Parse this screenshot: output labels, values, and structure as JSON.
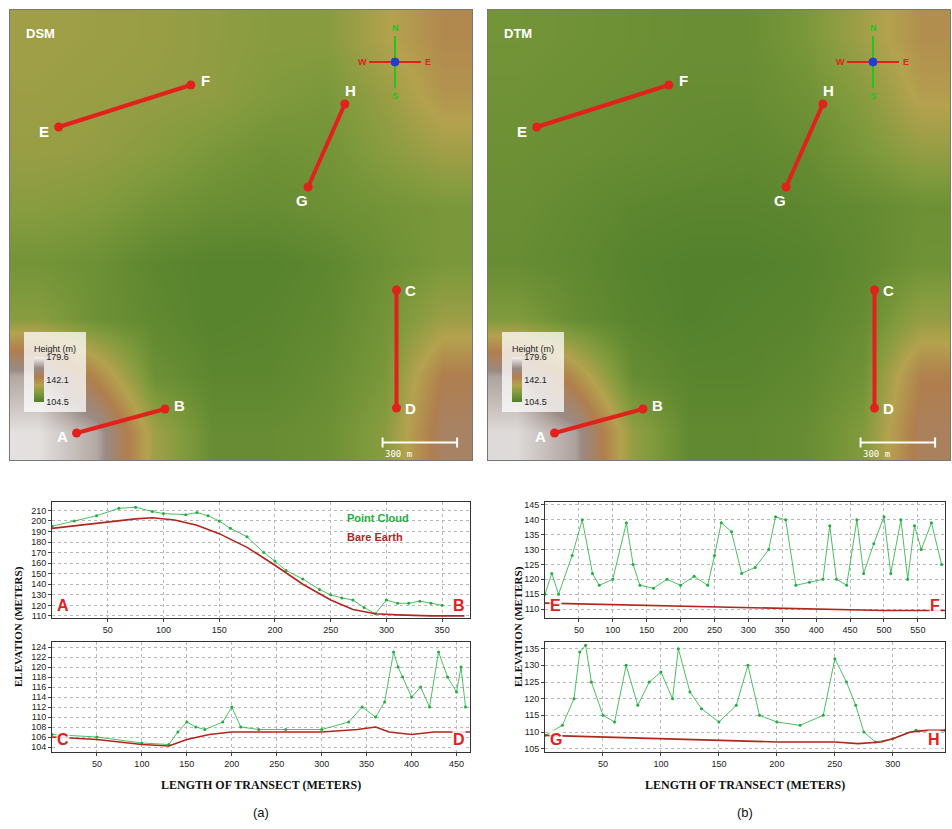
{
  "chart_data": [
    {
      "type": "heatmap",
      "title": "DSM",
      "x": [
        116.25,
        348.75,
        581.25,
        813.75,
        1046.25,
        1278.75,
        1511.25,
        1743.75
      ],
      "y": [
        112.5,
        337.5,
        562.5,
        787.5,
        1012.5,
        1237.5,
        1462.5,
        1687.5
      ],
      "cells": [
        [
          176,
          166,
          128,
          112,
          112,
          114,
          122,
          152
        ],
        [
          166,
          142,
          114,
          109,
          109,
          112,
          118,
          146
        ],
        [
          122,
          114,
          110,
          107,
          108,
          110,
          116,
          127
        ],
        [
          116,
          114,
          109,
          107,
          107,
          109,
          114,
          118
        ],
        [
          122,
          120,
          116,
          113,
          112,
          114,
          116,
          118
        ],
        [
          126,
          125,
          122,
          118,
          115,
          116,
          122,
          128
        ],
        [
          127,
          126,
          125,
          124,
          120,
          118,
          126,
          138
        ],
        [
          128,
          127,
          126,
          124,
          122,
          122,
          132,
          142
        ]
      ],
      "colorbar_title": "Height (m)",
      "colorbar_range": [
        104.5,
        179.6
      ],
      "colorbar_ticks": [
        104.5,
        142.1,
        179.6
      ],
      "xlim": [
        0,
        1860
      ],
      "ylim": [
        0,
        1800
      ],
      "tick_labels": false,
      "compass": [
        "N",
        "S",
        "W",
        "E"
      ],
      "scale_bar": {
        "length": 300,
        "label": "300 m"
      },
      "transects": [
        {
          "start_label": "A",
          "end_label": "B",
          "start": [
            268,
            108
          ],
          "end": [
            624,
            204
          ]
        },
        {
          "start_label": "C",
          "end_label": "D",
          "start": [
            1556,
            680
          ],
          "end": [
            1556,
            208
          ]
        },
        {
          "start_label": "E",
          "end_label": "F",
          "start": [
            196,
            1332
          ],
          "end": [
            728,
            1500
          ]
        },
        {
          "start_label": "G",
          "end_label": "H",
          "start": [
            1200,
            1092
          ],
          "end": [
            1348,
            1424
          ]
        }
      ]
    },
    {
      "type": "heatmap",
      "title": "DTM",
      "x": [
        116.25,
        348.75,
        581.25,
        813.75,
        1046.25,
        1278.75,
        1511.25,
        1743.75
      ],
      "y": [
        112.5,
        337.5,
        562.5,
        787.5,
        1012.5,
        1237.5,
        1462.5,
        1687.5
      ],
      "cells": [
        [
          175,
          165,
          125,
          110,
          110,
          112,
          120,
          150
        ],
        [
          165,
          140,
          112,
          108,
          108,
          110,
          115,
          145
        ],
        [
          120,
          112,
          108,
          106,
          107,
          108,
          112,
          125
        ],
        [
          112,
          110,
          107,
          106,
          106,
          107,
          110,
          115
        ],
        [
          113,
          111,
          109,
          108,
          108,
          109,
          111,
          114
        ],
        [
          114,
          113,
          112,
          111,
          110,
          112,
          118,
          125
        ],
        [
          115,
          114,
          113,
          112,
          112,
          115,
          122,
          135
        ],
        [
          116,
          115,
          114,
          113,
          113,
          118,
          128,
          140
        ]
      ],
      "colorbar_title": "Height (m)",
      "colorbar_range": [
        104.5,
        179.6
      ],
      "colorbar_ticks": [
        104.5,
        142.1,
        179.6
      ],
      "xlim": [
        0,
        1860
      ],
      "ylim": [
        0,
        1800
      ],
      "tick_labels": false,
      "compass": [
        "N",
        "S",
        "W",
        "E"
      ],
      "scale_bar": {
        "length": 300,
        "label": "300 m"
      },
      "transects": [
        {
          "start_label": "A",
          "end_label": "B",
          "start": [
            268,
            108
          ],
          "end": [
            624,
            204
          ]
        },
        {
          "start_label": "C",
          "end_label": "D",
          "start": [
            1556,
            680
          ],
          "end": [
            1556,
            208
          ]
        },
        {
          "start_label": "E",
          "end_label": "F",
          "start": [
            196,
            1332
          ],
          "end": [
            728,
            1500
          ]
        },
        {
          "start_label": "G",
          "end_label": "H",
          "start": [
            1200,
            1092
          ],
          "end": [
            1348,
            1424
          ]
        }
      ]
    },
    {
      "type": "line",
      "start_label": "A",
      "end_label": "B",
      "xlim": [
        0,
        375
      ],
      "ylim": [
        108,
        218
      ],
      "xticks": [
        50,
        100,
        150,
        200,
        250,
        300,
        350
      ],
      "yticks": [
        110,
        120,
        130,
        140,
        150,
        160,
        170,
        180,
        190,
        200,
        210
      ],
      "grid": true,
      "series": [
        {
          "name": "Point Cloud",
          "color": "#1fae3c",
          "marker": "circle",
          "line_style": "solid",
          "x": [
            0,
            20,
            40,
            60,
            75,
            90,
            100,
            120,
            130,
            140,
            150,
            160,
            175,
            190,
            200,
            210,
            225,
            240,
            250,
            260,
            270,
            280,
            290,
            300,
            310,
            320,
            330,
            340,
            350
          ],
          "values": [
            195,
            200,
            205,
            212,
            213,
            209,
            207,
            206,
            208,
            205,
            200,
            193,
            185,
            170,
            162,
            153,
            145,
            135,
            130,
            127,
            125,
            118,
            112,
            125,
            122,
            122,
            124,
            122,
            120
          ]
        },
        {
          "name": "Bare Earth",
          "color": "#b3261e",
          "line_style": "solid",
          "x": [
            0,
            25,
            50,
            75,
            90,
            110,
            130,
            150,
            175,
            200,
            225,
            250,
            270,
            290,
            310,
            340,
            370
          ],
          "values": [
            193,
            196,
            199,
            202,
            203,
            201,
            196,
            188,
            175,
            158,
            140,
            125,
            116,
            112,
            111,
            110,
            110
          ]
        }
      ]
    },
    {
      "type": "line",
      "start_label": "C",
      "end_label": "D",
      "xlim": [
        0,
        465
      ],
      "ylim": [
        103,
        125
      ],
      "xticks": [
        50,
        100,
        150,
        200,
        250,
        300,
        350,
        400,
        450
      ],
      "yticks": [
        104,
        106,
        108,
        110,
        112,
        114,
        116,
        118,
        120,
        122,
        124
      ],
      "grid": true,
      "series": [
        {
          "color": "#1fae3c",
          "marker": "circle",
          "line_style": "solid",
          "x": [
            0,
            50,
            100,
            130,
            140,
            150,
            160,
            170,
            190,
            200,
            210,
            230,
            260,
            300,
            330,
            345,
            360,
            370,
            380,
            385,
            390,
            400,
            410,
            420,
            430,
            440,
            450,
            455,
            460
          ],
          "values": [
            106.5,
            106,
            104.8,
            104.5,
            107,
            109,
            108,
            107.5,
            109,
            112,
            108,
            107.5,
            107.5,
            107.5,
            109,
            112,
            110,
            113,
            123,
            120,
            118,
            114,
            116,
            112,
            123,
            118,
            115,
            120,
            112
          ]
        },
        {
          "color": "#b3261e",
          "line_style": "solid",
          "x": [
            0,
            50,
            100,
            130,
            150,
            175,
            200,
            250,
            300,
            340,
            360,
            375,
            400,
            425,
            450,
            465
          ],
          "values": [
            106,
            105.5,
            104.5,
            104.2,
            105.5,
            106.5,
            107,
            107,
            107,
            107.5,
            108,
            107,
            106.5,
            107,
            107,
            107
          ]
        }
      ]
    },
    {
      "type": "line",
      "start_label": "E",
      "end_label": "F",
      "xlim": [
        0,
        590
      ],
      "ylim": [
        107,
        146
      ],
      "xticks": [
        50,
        100,
        150,
        200,
        250,
        300,
        350,
        400,
        450,
        500,
        550
      ],
      "yticks": [
        110,
        115,
        120,
        125,
        130,
        135,
        140,
        145
      ],
      "grid": true,
      "series": [
        {
          "color": "#1fae3c",
          "marker": "circle",
          "line_style": "solid",
          "x": [
            0,
            10,
            20,
            40,
            55,
            70,
            80,
            100,
            120,
            130,
            140,
            160,
            180,
            200,
            220,
            240,
            250,
            260,
            275,
            290,
            310,
            330,
            340,
            355,
            370,
            390,
            410,
            420,
            430,
            445,
            460,
            470,
            485,
            500,
            510,
            525,
            535,
            545,
            555,
            570,
            585
          ],
          "values": [
            115,
            122,
            115,
            128,
            140,
            122,
            118,
            120,
            139,
            125,
            118,
            117,
            120,
            118,
            121,
            118,
            128,
            139,
            136,
            122,
            124,
            130,
            141,
            140,
            118,
            119,
            120,
            138,
            120,
            118,
            140,
            122,
            132,
            141,
            122,
            140,
            120,
            138,
            130,
            139,
            125
          ]
        },
        {
          "color": "#b3261e",
          "line_style": "solid",
          "x": [
            0,
            100,
            200,
            300,
            400,
            500,
            590
          ],
          "values": [
            112,
            111.5,
            111,
            110.5,
            110,
            109.5,
            109.5
          ]
        }
      ]
    },
    {
      "type": "line",
      "start_label": "G",
      "end_label": "H",
      "xlim": [
        0,
        345
      ],
      "ylim": [
        104,
        137
      ],
      "xticks": [
        50,
        100,
        150,
        200,
        250,
        300
      ],
      "yticks": [
        105,
        110,
        115,
        120,
        125,
        130,
        135
      ],
      "grid": true,
      "series": [
        {
          "color": "#1fae3c",
          "marker": "circle",
          "line_style": "solid",
          "x": [
            0,
            15,
            25,
            30,
            35,
            40,
            50,
            60,
            70,
            80,
            90,
            100,
            110,
            115,
            125,
            135,
            150,
            165,
            175,
            185,
            200,
            220,
            240,
            250,
            260,
            268,
            275,
            285,
            300,
            320,
            345
          ],
          "values": [
            109,
            112,
            120,
            134,
            136,
            125,
            115,
            113,
            130,
            118,
            125,
            128,
            120,
            135,
            122,
            117,
            113,
            118,
            130,
            115,
            113,
            112,
            115,
            132,
            125,
            118,
            110,
            107,
            108,
            110.5,
            110.5
          ]
        },
        {
          "color": "#b3261e",
          "line_style": "solid",
          "x": [
            0,
            50,
            100,
            150,
            200,
            250,
            270,
            290,
            300,
            315,
            330,
            345
          ],
          "values": [
            109,
            108.5,
            108,
            107.5,
            107,
            107,
            106.5,
            107,
            108,
            110,
            110.5,
            110.5
          ]
        }
      ]
    }
  ],
  "profile_axes": {
    "y": "ELEVATION (METERS)",
    "x": "LENGTH OF TRANSECT (METERS)"
  },
  "panel_labels": [
    "(a)",
    "(b)"
  ]
}
